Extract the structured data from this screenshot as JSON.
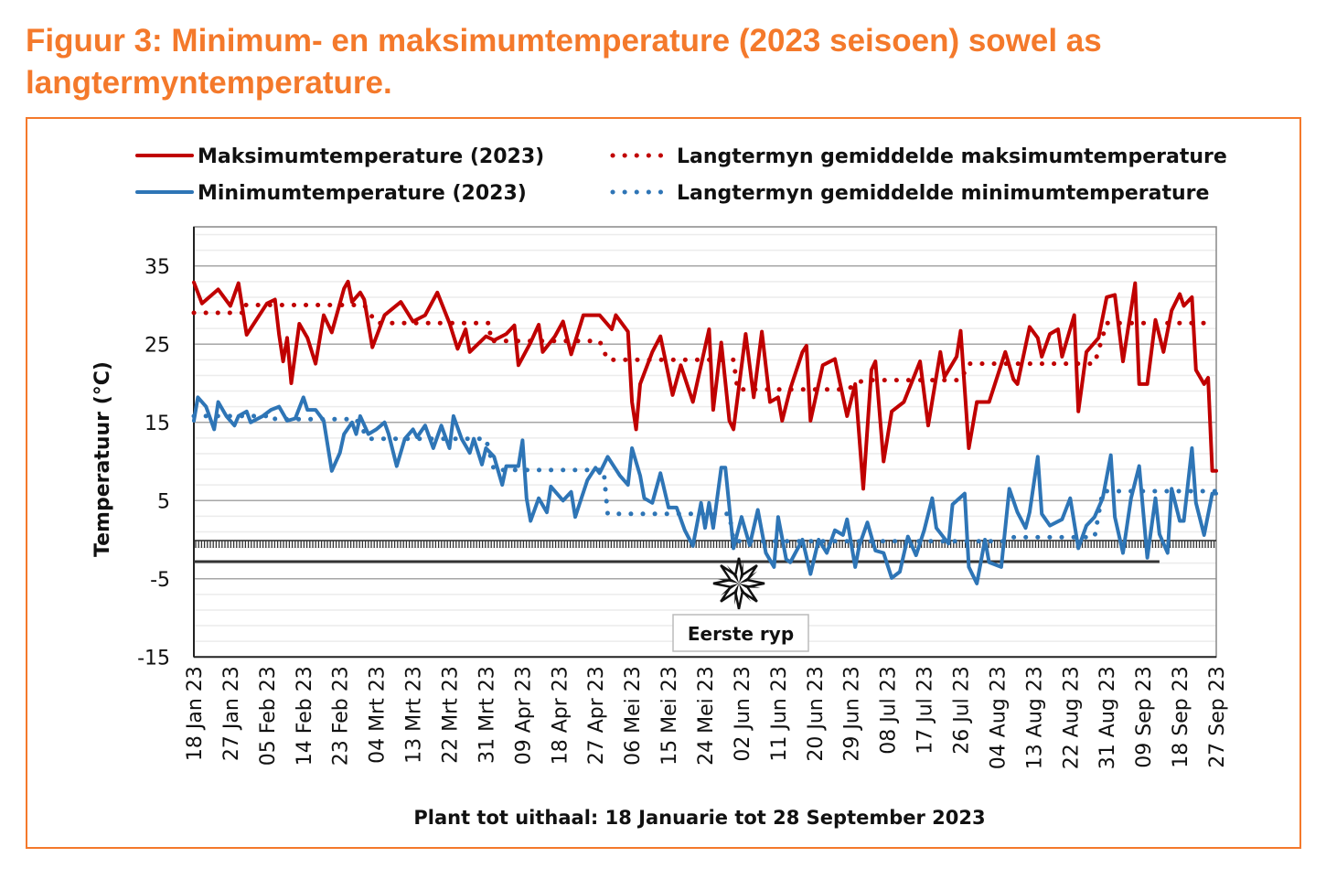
{
  "title": "Figuur 3: Minimum- en maksimumtemperature (2023 seisoen) sowel as langtermyntemperature.",
  "colors": {
    "accent": "#F4792B",
    "max": "#C00000",
    "min": "#2E75B6"
  },
  "chart_data": {
    "type": "line",
    "xlabel": "Plant tot uithaal: 18 Januarie tot 28 September 2023",
    "ylabel": "Temperatuur (°C)",
    "ylim": [
      -15,
      40
    ],
    "xlim_days": [
      0,
      252
    ],
    "yticks": [
      35,
      25,
      15,
      5,
      -5,
      -15
    ],
    "minor_grid_step": 2,
    "xtick_step_days": 9,
    "xtick_labels": [
      "18 Jan 23",
      "27 Jan 23",
      "05 Feb 23",
      "14 Feb 23",
      "23 Feb 23",
      "04 Mrt 23",
      "13 Mrt 23",
      "22 Mrt 23",
      "31 Mrt 23",
      "09 Apr 23",
      "18 Apr 23",
      "27 Apr 23",
      "06 Mei 23",
      "15 Mei 23",
      "24 Mei 23",
      "02 Jun 23",
      "11 Jun 23",
      "20 Jun 23",
      "29 Jun 23",
      "08 Jul 23",
      "17 Jul 23",
      "26 Jul 23",
      "04 Aug 23",
      "13 Aug 23",
      "22 Aug 23",
      "31 Aug 23",
      "09 Sep 23",
      "18 Sep 23",
      "27 Sep 23"
    ],
    "legend_position": "top",
    "series": [
      {
        "name": "Maksimumtemperature (2023)",
        "style": "solid",
        "color": "#C00000",
        "points": [
          [
            0,
            32.9
          ],
          [
            2,
            30.2
          ],
          [
            6,
            32
          ],
          [
            9,
            29.9
          ],
          [
            11,
            32.8
          ],
          [
            13,
            26.2
          ],
          [
            18,
            30.2
          ],
          [
            20,
            30.7
          ],
          [
            21,
            26.2
          ],
          [
            22,
            22.8
          ],
          [
            23,
            25.8
          ],
          [
            24,
            20
          ],
          [
            26,
            27.6
          ],
          [
            28,
            25.8
          ],
          [
            30,
            22.5
          ],
          [
            32,
            28.7
          ],
          [
            34,
            26.5
          ],
          [
            37,
            32.1
          ],
          [
            38,
            33
          ],
          [
            39,
            30.4
          ],
          [
            41,
            31.6
          ],
          [
            42,
            30.7
          ],
          [
            44,
            24.6
          ],
          [
            47,
            28.7
          ],
          [
            51,
            30.4
          ],
          [
            54,
            27.9
          ],
          [
            57,
            28.7
          ],
          [
            60,
            31.6
          ],
          [
            63,
            27.7
          ],
          [
            65,
            24.4
          ],
          [
            67,
            26.9
          ],
          [
            68,
            24
          ],
          [
            72,
            26
          ],
          [
            74,
            25.5
          ],
          [
            77,
            26.3
          ],
          [
            79,
            27.4
          ],
          [
            80,
            22.3
          ],
          [
            83,
            25.2
          ],
          [
            85,
            27.5
          ],
          [
            86,
            24
          ],
          [
            89,
            26
          ],
          [
            91,
            27.9
          ],
          [
            93,
            23.7
          ],
          [
            96,
            28.7
          ],
          [
            100,
            28.7
          ],
          [
            103,
            26.9
          ],
          [
            104,
            28.7
          ],
          [
            107,
            26.6
          ],
          [
            108,
            17.6
          ],
          [
            109,
            14.1
          ],
          [
            110,
            19.9
          ],
          [
            113,
            24
          ],
          [
            115,
            26
          ],
          [
            118,
            18.5
          ],
          [
            120,
            22.3
          ],
          [
            123,
            17.6
          ],
          [
            125,
            22.3
          ],
          [
            127,
            26.9
          ],
          [
            128,
            16.6
          ],
          [
            130,
            25.2
          ],
          [
            132,
            15.2
          ],
          [
            133,
            14.1
          ],
          [
            136,
            26.3
          ],
          [
            138,
            18.2
          ],
          [
            140,
            26.6
          ],
          [
            142,
            17.6
          ],
          [
            144,
            18.2
          ],
          [
            145,
            15.2
          ],
          [
            147,
            19.3
          ],
          [
            150,
            24
          ],
          [
            151,
            24.8
          ],
          [
            152,
            15.2
          ],
          [
            155,
            22.3
          ],
          [
            158,
            23.1
          ],
          [
            161,
            15.8
          ],
          [
            163,
            19.9
          ],
          [
            165,
            6.5
          ],
          [
            167,
            21.7
          ],
          [
            168,
            22.8
          ],
          [
            170,
            10
          ],
          [
            172,
            16.4
          ],
          [
            175,
            17.6
          ],
          [
            179,
            22.8
          ],
          [
            181,
            14.6
          ],
          [
            184,
            24
          ],
          [
            185,
            20.8
          ],
          [
            188,
            23.4
          ],
          [
            189,
            26.7
          ],
          [
            191,
            11.7
          ],
          [
            193,
            17.6
          ],
          [
            196,
            17.6
          ],
          [
            200,
            24
          ],
          [
            202,
            20.5
          ],
          [
            203,
            19.9
          ],
          [
            206,
            27.2
          ],
          [
            208,
            25.8
          ],
          [
            209,
            23.4
          ],
          [
            211,
            26.3
          ],
          [
            213,
            26.9
          ],
          [
            214,
            23.4
          ],
          [
            217,
            28.7
          ],
          [
            218,
            16.4
          ],
          [
            220,
            24
          ],
          [
            223,
            25.8
          ],
          [
            225,
            31
          ],
          [
            227,
            31.3
          ],
          [
            229,
            22.8
          ],
          [
            232,
            32.8
          ],
          [
            233,
            19.9
          ],
          [
            235,
            19.9
          ],
          [
            237,
            28.1
          ],
          [
            239,
            24
          ],
          [
            241,
            29.3
          ],
          [
            243,
            31.4
          ],
          [
            244,
            29.9
          ],
          [
            246,
            31
          ],
          [
            247,
            21.7
          ],
          [
            249,
            19.9
          ],
          [
            250,
            20.7
          ],
          [
            251,
            8.8
          ],
          [
            252,
            8.8
          ]
        ]
      },
      {
        "name": "Minimumtemperature (2023)",
        "style": "solid",
        "color": "#2E75B6",
        "points": [
          [
            0,
            15.2
          ],
          [
            1,
            18.2
          ],
          [
            3,
            17
          ],
          [
            5,
            14.1
          ],
          [
            6,
            17.6
          ],
          [
            8,
            15.8
          ],
          [
            10,
            14.6
          ],
          [
            11,
            15.8
          ],
          [
            13,
            16.4
          ],
          [
            14,
            15
          ],
          [
            17,
            15.8
          ],
          [
            19,
            16.6
          ],
          [
            21,
            17
          ],
          [
            23,
            15.2
          ],
          [
            25,
            15.5
          ],
          [
            27,
            18.2
          ],
          [
            28,
            16.6
          ],
          [
            30,
            16.6
          ],
          [
            32,
            15.2
          ],
          [
            34,
            8.8
          ],
          [
            36,
            11.1
          ],
          [
            37,
            13.5
          ],
          [
            39,
            15
          ],
          [
            40,
            13.5
          ],
          [
            41,
            15.8
          ],
          [
            43,
            13.5
          ],
          [
            45,
            14.1
          ],
          [
            47,
            15
          ],
          [
            48,
            13.5
          ],
          [
            50,
            9.4
          ],
          [
            52,
            12.9
          ],
          [
            54,
            14.1
          ],
          [
            55,
            13.1
          ],
          [
            57,
            14.6
          ],
          [
            59,
            11.7
          ],
          [
            61,
            14.6
          ],
          [
            63,
            11.7
          ],
          [
            64,
            15.8
          ],
          [
            66,
            12.9
          ],
          [
            68,
            11.1
          ],
          [
            69,
            12.9
          ],
          [
            71,
            9.6
          ],
          [
            72,
            11.7
          ],
          [
            74,
            10.6
          ],
          [
            76,
            7
          ],
          [
            77,
            9.4
          ],
          [
            80,
            9.4
          ],
          [
            81,
            12.7
          ],
          [
            82,
            5.3
          ],
          [
            83,
            2.4
          ],
          [
            85,
            5.3
          ],
          [
            87,
            3.5
          ],
          [
            88,
            6.8
          ],
          [
            91,
            5
          ],
          [
            93,
            6.1
          ],
          [
            94,
            2.9
          ],
          [
            97,
            7.6
          ],
          [
            99,
            9.2
          ],
          [
            100,
            8.5
          ],
          [
            102,
            10.6
          ],
          [
            105,
            8.2
          ],
          [
            107,
            7
          ],
          [
            108,
            11.7
          ],
          [
            110,
            8.2
          ],
          [
            111,
            5.3
          ],
          [
            113,
            4.7
          ],
          [
            115,
            8.5
          ],
          [
            117,
            4.1
          ],
          [
            119,
            4.1
          ],
          [
            121,
            1.2
          ],
          [
            123,
            -0.8
          ],
          [
            125,
            4.7
          ],
          [
            126,
            1.5
          ],
          [
            127,
            4.7
          ],
          [
            128,
            1.5
          ],
          [
            130,
            9.2
          ],
          [
            131,
            9.2
          ],
          [
            133,
            -1.1
          ],
          [
            135,
            2.9
          ],
          [
            137,
            -0.7
          ],
          [
            139,
            3.8
          ],
          [
            141,
            -1.7
          ],
          [
            143,
            -3.5
          ],
          [
            144,
            2.9
          ],
          [
            146,
            -2.5
          ],
          [
            147,
            -2.9
          ],
          [
            150,
            0
          ],
          [
            152,
            -4.4
          ],
          [
            154,
            0
          ],
          [
            156,
            -1.7
          ],
          [
            158,
            1.2
          ],
          [
            160,
            0.6
          ],
          [
            161,
            2.6
          ],
          [
            163,
            -3.5
          ],
          [
            164,
            -0.8
          ],
          [
            166,
            2.2
          ],
          [
            168,
            -1.4
          ],
          [
            170,
            -1.7
          ],
          [
            172,
            -4.9
          ],
          [
            174,
            -4.1
          ],
          [
            176,
            0.4
          ],
          [
            178,
            -2
          ],
          [
            180,
            1.2
          ],
          [
            182,
            5.3
          ],
          [
            183,
            1.5
          ],
          [
            186,
            -0.5
          ],
          [
            187,
            4.5
          ],
          [
            190,
            5.9
          ],
          [
            191,
            -3.5
          ],
          [
            193,
            -5.6
          ],
          [
            195,
            0
          ],
          [
            196,
            -2.9
          ],
          [
            199,
            -3.5
          ],
          [
            201,
            6.5
          ],
          [
            203,
            3.5
          ],
          [
            205,
            1.5
          ],
          [
            206,
            3.5
          ],
          [
            208,
            10.6
          ],
          [
            209,
            3.3
          ],
          [
            211,
            1.8
          ],
          [
            214,
            2.6
          ],
          [
            216,
            5.3
          ],
          [
            218,
            -1.1
          ],
          [
            220,
            1.8
          ],
          [
            222,
            2.9
          ],
          [
            224,
            5.3
          ],
          [
            226,
            10.8
          ],
          [
            227,
            2.9
          ],
          [
            229,
            -1.7
          ],
          [
            231,
            5.3
          ],
          [
            233,
            9.4
          ],
          [
            235,
            -2.3
          ],
          [
            237,
            5.3
          ],
          [
            238,
            0.7
          ],
          [
            240,
            -1.7
          ],
          [
            241,
            6.5
          ],
          [
            243,
            2.4
          ],
          [
            244,
            2.4
          ],
          [
            246,
            11.7
          ],
          [
            247,
            4.7
          ],
          [
            249,
            0.6
          ],
          [
            251,
            5.9
          ],
          [
            252,
            5.9
          ]
        ]
      },
      {
        "name": "Langtermyn gemiddelde maksimumtemperature",
        "style": "dotted",
        "color": "#C00000",
        "points": [
          [
            0,
            29
          ],
          [
            12,
            29
          ],
          [
            12,
            30
          ],
          [
            42,
            30
          ],
          [
            45,
            27.7
          ],
          [
            73,
            27.7
          ],
          [
            73,
            25.4
          ],
          [
            100,
            25.4
          ],
          [
            102,
            23
          ],
          [
            133,
            23
          ],
          [
            134,
            19.2
          ],
          [
            161,
            19.2
          ],
          [
            165,
            20.4
          ],
          [
            189,
            20.4
          ],
          [
            191,
            22.5
          ],
          [
            222,
            22.5
          ],
          [
            225,
            27.7
          ],
          [
            250,
            27.7
          ]
        ]
      },
      {
        "name": "Langtermyn gemiddelde minimumtemperature",
        "style": "dotted",
        "color": "#2E75B6",
        "points": [
          [
            0,
            15.8
          ],
          [
            20,
            15.8
          ],
          [
            20,
            15.4
          ],
          [
            40,
            15.4
          ],
          [
            43,
            12.9
          ],
          [
            72,
            12.9
          ],
          [
            74,
            8.9
          ],
          [
            101,
            8.9
          ],
          [
            102,
            3.3
          ],
          [
            132,
            3.3
          ],
          [
            133,
            -0.2
          ],
          [
            200,
            -0.2
          ],
          [
            202,
            0.3
          ],
          [
            222,
            0.3
          ],
          [
            224,
            6.2
          ],
          [
            252,
            6.2
          ]
        ]
      }
    ],
    "frost_band": 0,
    "frost_line": -2.8,
    "frost_line_end_day": 238,
    "annotation": {
      "text": "Eerste ryp",
      "day": 134,
      "value": -5.6
    }
  }
}
